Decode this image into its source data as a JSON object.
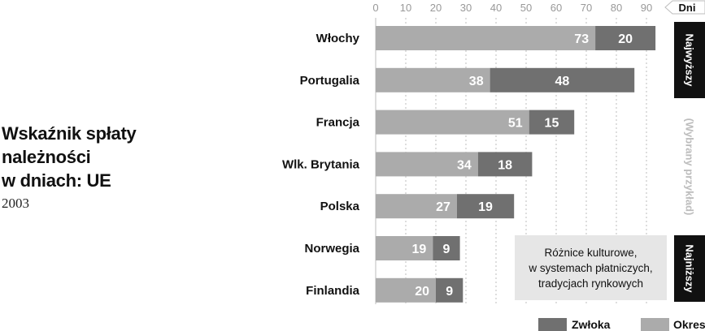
{
  "chart_data": {
    "type": "bar",
    "orientation": "horizontal",
    "stacked": true,
    "title": "Wskaźnik spłaty\nnależności\nw dniach: UE",
    "subtitle": "2003",
    "unit": "Dni",
    "xlim": [
      0,
      90
    ],
    "ticks": [
      0,
      10,
      20,
      30,
      40,
      50,
      60,
      70,
      80,
      90
    ],
    "grid": "dashed vertical",
    "categories": [
      "Włochy",
      "Portugalia",
      "Francja",
      "Wlk. Brytania",
      "Polska",
      "Norwegia",
      "Finlandia"
    ],
    "series": [
      {
        "name": "Okres",
        "values": [
          73,
          38,
          51,
          34,
          27,
          19,
          20
        ],
        "color": "#ababab"
      },
      {
        "name": "Zwłoka",
        "values": [
          20,
          48,
          15,
          18,
          19,
          9,
          9
        ],
        "color": "#707070"
      }
    ],
    "legend_position": "bottom-right",
    "side_labels": [
      "Najwyższy",
      "(Wybrany przykład)",
      "Najniższy"
    ],
    "annotation": "Różnice kulturowe,\nw systemach płatniczych,\ntradycjach rynkowych"
  }
}
